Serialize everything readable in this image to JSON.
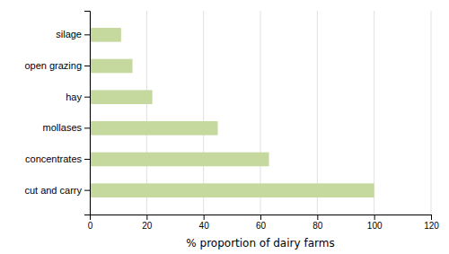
{
  "chart_data": {
    "type": "bar",
    "orientation": "horizontal",
    "categories": [
      "cut and carry",
      "concentrates",
      "mollases",
      "hay",
      "open grazing",
      "silage"
    ],
    "values": [
      100,
      63,
      45,
      22,
      15,
      11
    ],
    "color": "#c5d89d",
    "xlabel": "% proportion of dairy farms",
    "xlim": [
      0,
      120
    ],
    "xticks": [
      0,
      20,
      40,
      60,
      80,
      100,
      120
    ],
    "grid": true
  }
}
